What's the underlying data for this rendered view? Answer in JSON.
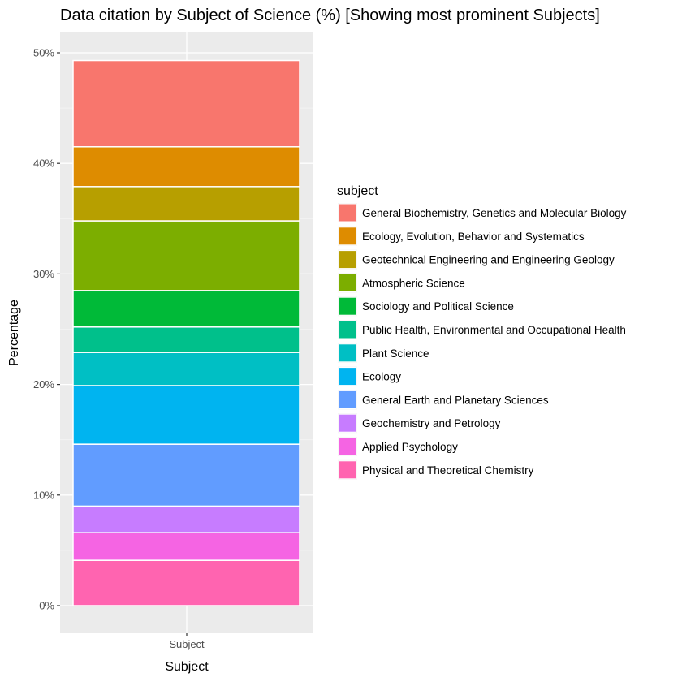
{
  "chart_data": {
    "type": "bar",
    "stacked": true,
    "title": "Data citation by Subject of Science (%) [Showing most prominent Subjects]",
    "xlabel": "Subject",
    "ylabel": "Percentage",
    "categories": [
      "Subject"
    ],
    "ylim": [
      0,
      0.5
    ],
    "yticks": [
      0,
      0.1,
      0.2,
      0.3,
      0.4,
      0.5
    ],
    "ytick_labels": [
      "0%",
      "10%",
      "20%",
      "30%",
      "40%",
      "50%"
    ],
    "grid": true,
    "legend": {
      "title": "subject",
      "placement": "right"
    },
    "series": [
      {
        "name": "General Biochemistry, Genetics and Molecular Biology",
        "color": "#F8766D",
        "value": 0.078
      },
      {
        "name": "Ecology, Evolution, Behavior and Systematics",
        "color": "#DE8C00",
        "value": 0.036
      },
      {
        "name": "Geotechnical Engineering and Engineering Geology",
        "color": "#B79F00",
        "value": 0.031
      },
      {
        "name": "Atmospheric Science",
        "color": "#7CAE00",
        "value": 0.063
      },
      {
        "name": "Sociology and Political Science",
        "color": "#00BA38",
        "value": 0.033
      },
      {
        "name": "Public Health, Environmental and Occupational Health",
        "color": "#00C08B",
        "value": 0.023
      },
      {
        "name": "Plant Science",
        "color": "#00BFC4",
        "value": 0.03
      },
      {
        "name": "Ecology",
        "color": "#00B4F0",
        "value": 0.053
      },
      {
        "name": "General Earth and Planetary Sciences",
        "color": "#619CFF",
        "value": 0.056
      },
      {
        "name": "Geochemistry and Petrology",
        "color": "#C77CFF",
        "value": 0.024
      },
      {
        "name": "Applied Psychology",
        "color": "#F564E3",
        "value": 0.025
      },
      {
        "name": "Physical and Theoretical Chemistry",
        "color": "#FF64B0",
        "value": 0.041
      }
    ]
  }
}
